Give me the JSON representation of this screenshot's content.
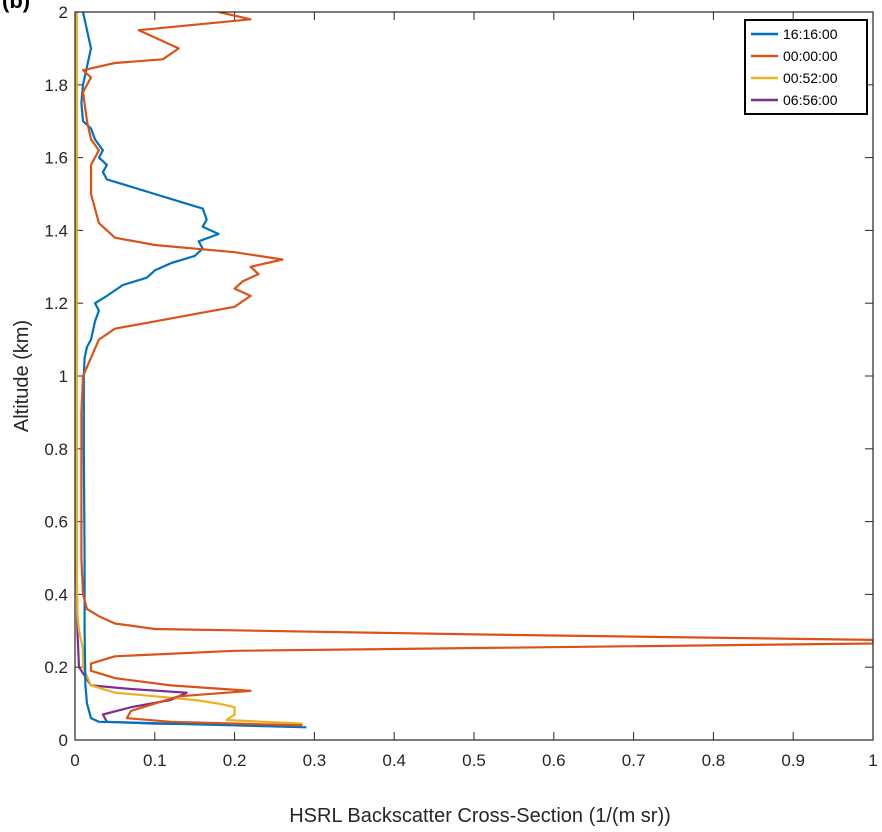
{
  "panel_label": "(b)",
  "chart_data": {
    "type": "line",
    "title": "",
    "xlabel": "HSRL Backscatter Cross-Section (1/(m sr))",
    "ylabel": "Altitude (km)",
    "xlim": [
      0,
      1
    ],
    "ylim": [
      0,
      2
    ],
    "x_ticks": [
      "0",
      "0.1",
      "0.2",
      "0.3",
      "0.4",
      "0.5",
      "0.6",
      "0.7",
      "0.8",
      "0.9",
      "1"
    ],
    "y_ticks": [
      "0",
      "0.2",
      "0.4",
      "0.6",
      "0.8",
      "1",
      "1.2",
      "1.4",
      "1.6",
      "1.8",
      "2"
    ],
    "grid": false,
    "legend_position": "top-right",
    "series": [
      {
        "name": "16:16:00",
        "color": "#0072BD",
        "points": [
          [
            0.29,
            0.035
          ],
          [
            0.12,
            0.045
          ],
          [
            0.03,
            0.05
          ],
          [
            0.02,
            0.06
          ],
          [
            0.015,
            0.1
          ],
          [
            0.013,
            0.15
          ],
          [
            0.012,
            0.3
          ],
          [
            0.012,
            0.5
          ],
          [
            0.011,
            0.8
          ],
          [
            0.011,
            1.0
          ],
          [
            0.012,
            1.05
          ],
          [
            0.015,
            1.08
          ],
          [
            0.02,
            1.1
          ],
          [
            0.025,
            1.15
          ],
          [
            0.03,
            1.18
          ],
          [
            0.025,
            1.2
          ],
          [
            0.04,
            1.22
          ],
          [
            0.06,
            1.25
          ],
          [
            0.09,
            1.27
          ],
          [
            0.1,
            1.29
          ],
          [
            0.12,
            1.31
          ],
          [
            0.15,
            1.33
          ],
          [
            0.16,
            1.35
          ],
          [
            0.155,
            1.37
          ],
          [
            0.18,
            1.39
          ],
          [
            0.16,
            1.41
          ],
          [
            0.165,
            1.43
          ],
          [
            0.16,
            1.46
          ],
          [
            0.13,
            1.48
          ],
          [
            0.1,
            1.5
          ],
          [
            0.07,
            1.52
          ],
          [
            0.04,
            1.54
          ],
          [
            0.035,
            1.56
          ],
          [
            0.04,
            1.58
          ],
          [
            0.03,
            1.6
          ],
          [
            0.035,
            1.62
          ],
          [
            0.025,
            1.65
          ],
          [
            0.02,
            1.68
          ],
          [
            0.01,
            1.7
          ],
          [
            0.008,
            1.75
          ],
          [
            0.01,
            1.8
          ],
          [
            0.015,
            1.85
          ],
          [
            0.02,
            1.9
          ],
          [
            0.015,
            1.95
          ],
          [
            0.01,
            2.0
          ]
        ]
      },
      {
        "name": "00:00:00",
        "color": "#D95319",
        "points": [
          [
            0.285,
            0.04
          ],
          [
            0.12,
            0.05
          ],
          [
            0.065,
            0.06
          ],
          [
            0.07,
            0.08
          ],
          [
            0.1,
            0.1
          ],
          [
            0.13,
            0.12
          ],
          [
            0.19,
            0.13
          ],
          [
            0.22,
            0.135
          ],
          [
            0.12,
            0.15
          ],
          [
            0.05,
            0.17
          ],
          [
            0.02,
            0.19
          ],
          [
            0.02,
            0.21
          ],
          [
            0.05,
            0.23
          ],
          [
            0.2,
            0.245
          ],
          [
            1.0,
            0.265
          ],
          [
            1.0,
            0.275
          ],
          [
            0.5,
            0.29
          ],
          [
            0.1,
            0.305
          ],
          [
            0.05,
            0.32
          ],
          [
            0.03,
            0.34
          ],
          [
            0.015,
            0.36
          ],
          [
            0.01,
            0.4
          ],
          [
            0.008,
            0.5
          ],
          [
            0.008,
            0.7
          ],
          [
            0.008,
            0.9
          ],
          [
            0.01,
            1.0
          ],
          [
            0.02,
            1.05
          ],
          [
            0.03,
            1.1
          ],
          [
            0.05,
            1.13
          ],
          [
            0.1,
            1.15
          ],
          [
            0.15,
            1.17
          ],
          [
            0.2,
            1.19
          ],
          [
            0.22,
            1.22
          ],
          [
            0.2,
            1.24
          ],
          [
            0.21,
            1.26
          ],
          [
            0.23,
            1.28
          ],
          [
            0.22,
            1.3
          ],
          [
            0.26,
            1.32
          ],
          [
            0.2,
            1.34
          ],
          [
            0.1,
            1.36
          ],
          [
            0.05,
            1.38
          ],
          [
            0.03,
            1.42
          ],
          [
            0.02,
            1.5
          ],
          [
            0.02,
            1.58
          ],
          [
            0.03,
            1.62
          ],
          [
            0.02,
            1.65
          ],
          [
            0.015,
            1.7
          ],
          [
            0.01,
            1.78
          ],
          [
            0.02,
            1.82
          ],
          [
            0.01,
            1.84
          ],
          [
            0.05,
            1.86
          ],
          [
            0.11,
            1.87
          ],
          [
            0.13,
            1.9
          ],
          [
            0.1,
            1.93
          ],
          [
            0.08,
            1.95
          ],
          [
            0.22,
            1.98
          ],
          [
            0.18,
            2.0
          ]
        ]
      },
      {
        "name": "00:52:00",
        "color": "#EDB120",
        "points": [
          [
            0.285,
            0.045
          ],
          [
            0.19,
            0.055
          ],
          [
            0.2,
            0.07
          ],
          [
            0.2,
            0.09
          ],
          [
            0.18,
            0.1
          ],
          [
            0.15,
            0.11
          ],
          [
            0.1,
            0.12
          ],
          [
            0.05,
            0.13
          ],
          [
            0.02,
            0.15
          ],
          [
            0.01,
            0.2
          ],
          [
            0.01,
            0.25
          ],
          [
            0.005,
            0.3
          ],
          [
            0.003,
            0.35
          ],
          [
            0.002,
            0.5
          ],
          [
            0.002,
            1.0
          ],
          [
            0.002,
            1.5
          ],
          [
            0.002,
            2.0
          ]
        ]
      },
      {
        "name": "06:56:00",
        "color": "#7E2F8E",
        "points": [
          [
            0.285,
            0.04
          ],
          [
            0.1,
            0.045
          ],
          [
            0.04,
            0.05
          ],
          [
            0.035,
            0.07
          ],
          [
            0.07,
            0.09
          ],
          [
            0.12,
            0.11
          ],
          [
            0.14,
            0.13
          ],
          [
            0.07,
            0.14
          ],
          [
            0.02,
            0.15
          ],
          [
            0.005,
            0.2
          ],
          [
            0.003,
            0.3
          ],
          [
            0.002,
            0.5
          ],
          [
            0.002,
            1.0
          ],
          [
            0.002,
            1.5
          ],
          [
            0.002,
            2.0
          ]
        ]
      }
    ]
  }
}
